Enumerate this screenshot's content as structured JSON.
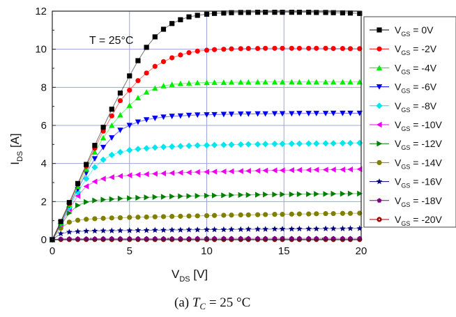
{
  "chart_data": {
    "type": "line",
    "xlabel": {
      "main": "V",
      "sub": "DS",
      "unit": " [V]"
    },
    "ylabel": {
      "main": "I",
      "sub": "DS",
      "unit": " [A]"
    },
    "xlim": [
      0,
      20
    ],
    "ylim": [
      0,
      12
    ],
    "xticks": [
      0,
      5,
      10,
      15,
      20
    ],
    "yticks": [
      0,
      2,
      4,
      6,
      8,
      10,
      12
    ],
    "grid": true,
    "legend_position": "right",
    "annotation": "T = 25°C",
    "caption": {
      "prefix": "(a) ",
      "var": "T",
      "sub": "C",
      "rest": " = 25 °C"
    },
    "x": [
      0,
      0.55,
      1.1,
      1.65,
      2.2,
      2.75,
      3.3,
      3.85,
      4.4,
      5,
      5.55,
      6.1,
      6.65,
      7.2,
      7.75,
      8.3,
      8.85,
      9.4,
      10,
      10.5,
      11.1,
      11.6,
      12.2,
      12.7,
      13.3,
      13.8,
      14.4,
      14.9,
      15.5,
      16,
      16.6,
      17.1,
      17.7,
      18.2,
      18.8,
      19.3,
      19.9
    ],
    "series": [
      {
        "name": "= 0V",
        "label_main": "V",
        "label_sub": "GS",
        "label_rest": " = 0V",
        "color": "#000000",
        "marker": "square",
        "values": [
          0,
          0.95,
          1.95,
          2.95,
          3.95,
          4.95,
          5.9,
          6.85,
          7.7,
          8.6,
          9.4,
          10.1,
          10.65,
          11.05,
          11.35,
          11.55,
          11.7,
          11.78,
          11.84,
          11.88,
          11.9,
          11.92,
          11.93,
          11.93,
          11.94,
          11.94,
          11.94,
          11.94,
          11.94,
          11.94,
          11.94,
          11.93,
          11.93,
          11.92,
          11.91,
          11.9,
          11.88
        ]
      },
      {
        "name": "= -2V",
        "label_main": "V",
        "label_sub": "GS",
        "label_rest": " = -2V",
        "color": "#ff0000",
        "marker": "circle",
        "values": [
          0,
          0.95,
          1.9,
          2.9,
          3.85,
          4.8,
          5.7,
          6.5,
          7.3,
          7.85,
          8.35,
          8.75,
          9.1,
          9.35,
          9.55,
          9.7,
          9.82,
          9.9,
          9.95,
          9.98,
          10.0,
          10.02,
          10.03,
          10.04,
          10.04,
          10.05,
          10.05,
          10.05,
          10.05,
          10.05,
          10.05,
          10.05,
          10.05,
          10.04,
          10.04,
          10.03,
          10.03
        ]
      },
      {
        "name": "= -4V",
        "label_main": "V",
        "label_sub": "GS",
        "label_rest": " = -4V",
        "color": "#00ee00",
        "marker": "triangle-up",
        "values": [
          0,
          0.9,
          1.85,
          2.8,
          3.7,
          4.6,
          5.35,
          6.0,
          6.55,
          7.05,
          7.45,
          7.75,
          7.95,
          8.08,
          8.15,
          8.2,
          8.22,
          8.24,
          8.25,
          8.26,
          8.26,
          8.27,
          8.27,
          8.27,
          8.28,
          8.28,
          8.28,
          8.28,
          8.28,
          8.28,
          8.28,
          8.28,
          8.28,
          8.28,
          8.28,
          8.28,
          8.28
        ]
      },
      {
        "name": "= -6V",
        "label_main": "V",
        "label_sub": "GS",
        "label_rest": " = -6V",
        "color": "#0000ee",
        "marker": "triangle-down",
        "values": [
          0,
          0.88,
          1.8,
          2.65,
          3.5,
          4.25,
          4.85,
          5.35,
          5.75,
          6.0,
          6.18,
          6.3,
          6.38,
          6.44,
          6.48,
          6.5,
          6.53,
          6.55,
          6.56,
          6.57,
          6.58,
          6.59,
          6.6,
          6.6,
          6.61,
          6.61,
          6.62,
          6.62,
          6.62,
          6.63,
          6.63,
          6.63,
          6.63,
          6.64,
          6.64,
          6.64,
          6.64
        ]
      },
      {
        "name": "= -8V",
        "label_main": "V",
        "label_sub": "GS",
        "label_rest": " = -8V",
        "color": "#00e5ee",
        "marker": "diamond",
        "values": [
          0,
          0.85,
          1.7,
          2.5,
          3.2,
          3.8,
          4.2,
          4.45,
          4.6,
          4.7,
          4.76,
          4.8,
          4.84,
          4.87,
          4.89,
          4.91,
          4.93,
          4.95,
          4.96,
          4.97,
          4.98,
          4.99,
          5.0,
          5.01,
          5.01,
          5.02,
          5.03,
          5.03,
          5.04,
          5.04,
          5.05,
          5.05,
          5.06,
          5.06,
          5.07,
          5.07,
          5.08
        ]
      },
      {
        "name": "= -10V",
        "label_main": "V",
        "label_sub": "GS",
        "label_rest": " = -10V",
        "color": "#ee00ee",
        "marker": "triangle-left",
        "values": [
          0,
          0.8,
          1.6,
          2.3,
          2.8,
          3.05,
          3.2,
          3.28,
          3.34,
          3.38,
          3.41,
          3.44,
          3.46,
          3.48,
          3.5,
          3.52,
          3.53,
          3.55,
          3.56,
          3.57,
          3.58,
          3.59,
          3.6,
          3.61,
          3.62,
          3.63,
          3.64,
          3.64,
          3.65,
          3.66,
          3.66,
          3.67,
          3.67,
          3.68,
          3.68,
          3.69,
          3.7
        ]
      },
      {
        "name": "= -12V",
        "label_main": "V",
        "label_sub": "GS",
        "label_rest": " = -12V",
        "color": "#007f00",
        "marker": "triangle-right",
        "values": [
          0,
          0.75,
          1.4,
          1.8,
          1.98,
          2.06,
          2.1,
          2.13,
          2.16,
          2.18,
          2.2,
          2.22,
          2.24,
          2.25,
          2.27,
          2.28,
          2.29,
          2.3,
          2.31,
          2.32,
          2.33,
          2.34,
          2.35,
          2.35,
          2.36,
          2.37,
          2.37,
          2.38,
          2.38,
          2.39,
          2.39,
          2.4,
          2.4,
          2.41,
          2.41,
          2.42,
          2.42
        ]
      },
      {
        "name": "= -14V",
        "label_main": "V",
        "label_sub": "GS",
        "label_rest": " = -14V",
        "color": "#808000",
        "marker": "circle",
        "values": [
          0,
          0.6,
          0.92,
          1.02,
          1.07,
          1.1,
          1.12,
          1.14,
          1.15,
          1.17,
          1.18,
          1.19,
          1.2,
          1.21,
          1.22,
          1.23,
          1.24,
          1.25,
          1.26,
          1.27,
          1.28,
          1.29,
          1.3,
          1.3,
          1.31,
          1.32,
          1.33,
          1.33,
          1.34,
          1.35,
          1.35,
          1.36,
          1.37,
          1.37,
          1.38,
          1.38,
          1.39
        ]
      },
      {
        "name": "= -16V",
        "label_main": "V",
        "label_sub": "GS",
        "label_rest": " = -16V",
        "color": "#00007f",
        "marker": "star",
        "values": [
          0,
          0.32,
          0.4,
          0.43,
          0.45,
          0.46,
          0.47,
          0.47,
          0.48,
          0.48,
          0.49,
          0.49,
          0.5,
          0.5,
          0.51,
          0.51,
          0.52,
          0.52,
          0.53,
          0.53,
          0.53,
          0.54,
          0.54,
          0.55,
          0.55,
          0.55,
          0.56,
          0.56,
          0.56,
          0.57,
          0.57,
          0.57,
          0.58,
          0.58,
          0.58,
          0.59,
          0.59
        ]
      },
      {
        "name": "= -18V",
        "label_main": "V",
        "label_sub": "GS",
        "label_rest": " = -18V",
        "color": "#7f007f",
        "marker": "pentagon",
        "values": [
          0,
          0.04,
          0.05,
          0.05,
          0.05,
          0.05,
          0.06,
          0.06,
          0.06,
          0.06,
          0.06,
          0.06,
          0.06,
          0.06,
          0.06,
          0.06,
          0.06,
          0.07,
          0.07,
          0.07,
          0.07,
          0.07,
          0.07,
          0.07,
          0.07,
          0.07,
          0.07,
          0.07,
          0.07,
          0.07,
          0.07,
          0.07,
          0.07,
          0.07,
          0.07,
          0.07,
          0.07
        ]
      },
      {
        "name": "= -20V",
        "label_main": "V",
        "label_sub": "GS",
        "label_rest": " = -20V",
        "color": "#990000",
        "marker": "circle-dot",
        "values": [
          0,
          0.01,
          0.01,
          0.01,
          0.01,
          0.01,
          0.01,
          0.01,
          0.01,
          0.01,
          0.01,
          0.01,
          0.01,
          0.01,
          0.01,
          0.01,
          0.01,
          0.01,
          0.01,
          0.01,
          0.01,
          0.01,
          0.01,
          0.01,
          0.01,
          0.01,
          0.01,
          0.01,
          0.01,
          0.01,
          0.01,
          0.01,
          0.01,
          0.01,
          0.01,
          0.01,
          0.01
        ]
      }
    ]
  }
}
